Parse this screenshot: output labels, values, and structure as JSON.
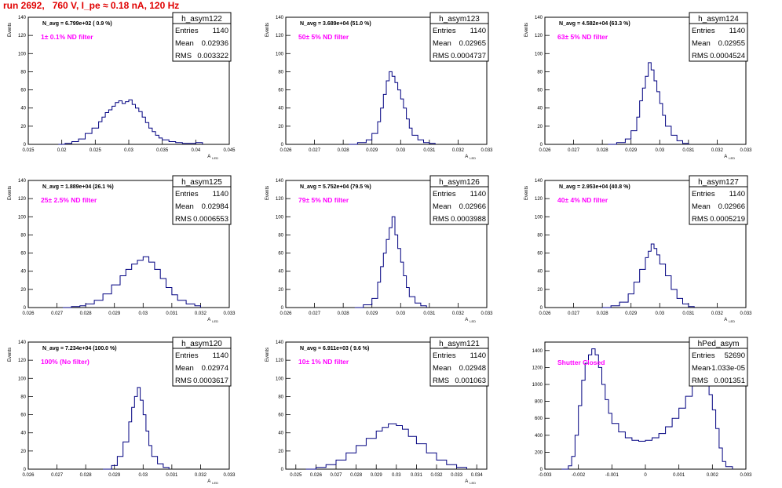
{
  "page_title": "run 2692,   760 V, I_pe ≈ 0.18 nA, 120 Hz",
  "colors": {
    "title": "#e00000",
    "annotation": "#ff00ff",
    "histogram": "#000080",
    "frame": "#000000"
  },
  "stats_labels": {
    "entries": "Entries",
    "mean": "Mean",
    "rms": "RMS"
  },
  "chart_data": [
    {
      "type": "histogram",
      "name": "h_asym122",
      "ylabel": "Events",
      "xlabel": "A_LED",
      "navg": "N_avg = 6.799e+02 ( 0.9 %)",
      "annotation": "1± 0.1% ND filter",
      "stats": {
        "entries": "1140",
        "mean": "0.02936",
        "rms": "0.003322"
      },
      "xlim": [
        0.015,
        0.045
      ],
      "ylim": [
        0,
        140
      ],
      "xticks": [
        0.015,
        0.02,
        0.025,
        0.03,
        0.035,
        0.04,
        0.045
      ],
      "xticklabels": [
        "0.015",
        "0.02",
        "0.025",
        "0.03",
        "0.035",
        "0.04",
        "0.045"
      ],
      "yticks": [
        0,
        20,
        40,
        60,
        80,
        100,
        120,
        140
      ],
      "shape": [
        [
          0.0195,
          0
        ],
        [
          0.0205,
          1
        ],
        [
          0.0215,
          3
        ],
        [
          0.0225,
          6
        ],
        [
          0.0235,
          12
        ],
        [
          0.0245,
          18
        ],
        [
          0.0255,
          25
        ],
        [
          0.026,
          30
        ],
        [
          0.0265,
          35
        ],
        [
          0.027,
          38
        ],
        [
          0.0275,
          42
        ],
        [
          0.028,
          46
        ],
        [
          0.0285,
          48
        ],
        [
          0.029,
          45
        ],
        [
          0.0295,
          47
        ],
        [
          0.03,
          49
        ],
        [
          0.0305,
          44
        ],
        [
          0.031,
          40
        ],
        [
          0.0315,
          36
        ],
        [
          0.032,
          30
        ],
        [
          0.0325,
          24
        ],
        [
          0.033,
          18
        ],
        [
          0.0335,
          14
        ],
        [
          0.034,
          10
        ],
        [
          0.0345,
          7
        ],
        [
          0.035,
          5
        ],
        [
          0.036,
          3
        ],
        [
          0.037,
          2
        ],
        [
          0.038,
          1
        ],
        [
          0.039,
          1
        ],
        [
          0.04,
          2
        ],
        [
          0.041,
          0
        ]
      ]
    },
    {
      "type": "histogram",
      "name": "h_asym123",
      "ylabel": "Events",
      "xlabel": "A_LED",
      "navg": "N_avg = 3.689e+04 (51.0 %)",
      "annotation": "50± 5% ND filter",
      "stats": {
        "entries": "1140",
        "mean": "0.02965",
        "rms": "0.0004737"
      },
      "xlim": [
        0.026,
        0.033
      ],
      "ylim": [
        0,
        140
      ],
      "xticks": [
        0.026,
        0.027,
        0.028,
        0.029,
        0.03,
        0.031,
        0.032,
        0.033
      ],
      "xticklabels": [
        "0.026",
        "0.027",
        "0.028",
        "0.029",
        "0.03",
        "0.031",
        "0.032",
        "0.033"
      ],
      "yticks": [
        0,
        20,
        40,
        60,
        80,
        100,
        120,
        140
      ],
      "shape": [
        [
          0.0282,
          0
        ],
        [
          0.0285,
          2
        ],
        [
          0.0288,
          5
        ],
        [
          0.029,
          12
        ],
        [
          0.0292,
          25
        ],
        [
          0.0293,
          40
        ],
        [
          0.0294,
          55
        ],
        [
          0.0295,
          70
        ],
        [
          0.0296,
          80
        ],
        [
          0.0297,
          75
        ],
        [
          0.0298,
          68
        ],
        [
          0.0299,
          60
        ],
        [
          0.03,
          50
        ],
        [
          0.0301,
          40
        ],
        [
          0.0302,
          28
        ],
        [
          0.0303,
          18
        ],
        [
          0.0304,
          10
        ],
        [
          0.0306,
          5
        ],
        [
          0.0308,
          2
        ],
        [
          0.031,
          1
        ],
        [
          0.0312,
          0
        ]
      ]
    },
    {
      "type": "histogram",
      "name": "h_asym124",
      "ylabel": "Events",
      "xlabel": "A_LED",
      "navg": "N_avg = 4.582e+04 (63.3 %)",
      "annotation": "63± 5% ND filter",
      "stats": {
        "entries": "1140",
        "mean": "0.02955",
        "rms": "0.0004524"
      },
      "xlim": [
        0.026,
        0.033
      ],
      "ylim": [
        0,
        140
      ],
      "xticks": [
        0.026,
        0.027,
        0.028,
        0.029,
        0.03,
        0.031,
        0.032,
        0.033
      ],
      "xticklabels": [
        "0.026",
        "0.027",
        "0.028",
        "0.029",
        "0.03",
        "0.031",
        "0.032",
        "0.033"
      ],
      "yticks": [
        0,
        20,
        40,
        60,
        80,
        100,
        120,
        140
      ],
      "shape": [
        [
          0.0282,
          0
        ],
        [
          0.0285,
          2
        ],
        [
          0.0288,
          6
        ],
        [
          0.029,
          15
        ],
        [
          0.0292,
          30
        ],
        [
          0.0293,
          48
        ],
        [
          0.0294,
          62
        ],
        [
          0.0295,
          75
        ],
        [
          0.0296,
          90
        ],
        [
          0.0297,
          82
        ],
        [
          0.0298,
          70
        ],
        [
          0.0299,
          58
        ],
        [
          0.03,
          45
        ],
        [
          0.0301,
          32
        ],
        [
          0.0302,
          20
        ],
        [
          0.0304,
          10
        ],
        [
          0.0306,
          4
        ],
        [
          0.0308,
          1
        ],
        [
          0.031,
          0
        ]
      ]
    },
    {
      "type": "histogram",
      "name": "h_asym125",
      "ylabel": "Events",
      "xlabel": "A_LED",
      "navg": "N_avg = 1.889e+04 (26.1 %)",
      "annotation": "25± 2.5% ND filter",
      "stats": {
        "entries": "1140",
        "mean": "0.02984",
        "rms": "0.0006553"
      },
      "xlim": [
        0.026,
        0.033
      ],
      "ylim": [
        0,
        140
      ],
      "xticks": [
        0.026,
        0.027,
        0.028,
        0.029,
        0.03,
        0.031,
        0.032,
        0.033
      ],
      "xticklabels": [
        "0.026",
        "0.027",
        "0.028",
        "0.029",
        "0.03",
        "0.031",
        "0.032",
        "0.033"
      ],
      "yticks": [
        0,
        20,
        40,
        60,
        80,
        100,
        120,
        140
      ],
      "shape": [
        [
          0.0272,
          0
        ],
        [
          0.0275,
          1
        ],
        [
          0.0278,
          2
        ],
        [
          0.028,
          4
        ],
        [
          0.0283,
          8
        ],
        [
          0.0286,
          15
        ],
        [
          0.0289,
          25
        ],
        [
          0.0292,
          35
        ],
        [
          0.0294,
          42
        ],
        [
          0.0296,
          48
        ],
        [
          0.0298,
          52
        ],
        [
          0.03,
          56
        ],
        [
          0.0302,
          50
        ],
        [
          0.0304,
          42
        ],
        [
          0.0306,
          32
        ],
        [
          0.0308,
          22
        ],
        [
          0.031,
          14
        ],
        [
          0.0312,
          8
        ],
        [
          0.0315,
          4
        ],
        [
          0.0318,
          2
        ],
        [
          0.032,
          0
        ]
      ]
    },
    {
      "type": "histogram",
      "name": "h_asym126",
      "ylabel": "Events",
      "xlabel": "A_LED",
      "navg": "N_avg = 5.752e+04 (79.5 %)",
      "annotation": "79± 5% ND filter",
      "stats": {
        "entries": "1140",
        "mean": "0.02966",
        "rms": "0.0003988"
      },
      "xlim": [
        0.026,
        0.033
      ],
      "ylim": [
        0,
        140
      ],
      "xticks": [
        0.026,
        0.027,
        0.028,
        0.029,
        0.03,
        0.031,
        0.032,
        0.033
      ],
      "xticklabels": [
        "0.026",
        "0.027",
        "0.028",
        "0.029",
        "0.03",
        "0.031",
        "0.032",
        "0.033"
      ],
      "yticks": [
        0,
        20,
        40,
        60,
        80,
        100,
        120,
        140
      ],
      "shape": [
        [
          0.0284,
          0
        ],
        [
          0.0287,
          3
        ],
        [
          0.029,
          10
        ],
        [
          0.0292,
          28
        ],
        [
          0.0293,
          45
        ],
        [
          0.0294,
          60
        ],
        [
          0.0295,
          75
        ],
        [
          0.0296,
          88
        ],
        [
          0.0297,
          100
        ],
        [
          0.0298,
          80
        ],
        [
          0.0299,
          65
        ],
        [
          0.03,
          50
        ],
        [
          0.0301,
          35
        ],
        [
          0.0302,
          22
        ],
        [
          0.0303,
          12
        ],
        [
          0.0305,
          5
        ],
        [
          0.0307,
          2
        ],
        [
          0.0309,
          0
        ]
      ]
    },
    {
      "type": "histogram",
      "name": "h_asym127",
      "ylabel": "Events",
      "xlabel": "A_LED",
      "navg": "N_avg = 2.953e+04 (40.8 %)",
      "annotation": "40± 4% ND filter",
      "stats": {
        "entries": "1140",
        "mean": "0.02966",
        "rms": "0.0005219"
      },
      "xlim": [
        0.026,
        0.033
      ],
      "ylim": [
        0,
        140
      ],
      "xticks": [
        0.026,
        0.027,
        0.028,
        0.029,
        0.03,
        0.031,
        0.032,
        0.033
      ],
      "xticklabels": [
        "0.026",
        "0.027",
        "0.028",
        "0.029",
        "0.03",
        "0.031",
        "0.032",
        "0.033"
      ],
      "yticks": [
        0,
        20,
        40,
        60,
        80,
        100,
        120,
        140
      ],
      "shape": [
        [
          0.028,
          0
        ],
        [
          0.0283,
          2
        ],
        [
          0.0286,
          6
        ],
        [
          0.0289,
          15
        ],
        [
          0.0291,
          28
        ],
        [
          0.0293,
          42
        ],
        [
          0.0295,
          55
        ],
        [
          0.0296,
          62
        ],
        [
          0.0297,
          70
        ],
        [
          0.0298,
          65
        ],
        [
          0.0299,
          58
        ],
        [
          0.03,
          48
        ],
        [
          0.0302,
          35
        ],
        [
          0.0304,
          20
        ],
        [
          0.0306,
          10
        ],
        [
          0.0308,
          4
        ],
        [
          0.031,
          1
        ],
        [
          0.0312,
          0
        ]
      ]
    },
    {
      "type": "histogram",
      "name": "h_asym120",
      "ylabel": "Events",
      "xlabel": "A_LED",
      "navg": "N_avg = 7.234e+04 (100.0 %)",
      "annotation": "100% (No filter)",
      "stats": {
        "entries": "1140",
        "mean": "0.02974",
        "rms": "0.0003617"
      },
      "xlim": [
        0.026,
        0.033
      ],
      "ylim": [
        0,
        140
      ],
      "xticks": [
        0.026,
        0.027,
        0.028,
        0.029,
        0.03,
        0.031,
        0.032,
        0.033
      ],
      "xticklabels": [
        "0.026",
        "0.027",
        "0.028",
        "0.029",
        "0.03",
        "0.031",
        "0.032",
        "0.033"
      ],
      "yticks": [
        0,
        20,
        40,
        60,
        80,
        100,
        120,
        140
      ],
      "shape": [
        [
          0.0286,
          0
        ],
        [
          0.0289,
          4
        ],
        [
          0.0291,
          14
        ],
        [
          0.0293,
          30
        ],
        [
          0.0295,
          52
        ],
        [
          0.0296,
          68
        ],
        [
          0.0297,
          80
        ],
        [
          0.0298,
          90
        ],
        [
          0.0299,
          76
        ],
        [
          0.03,
          60
        ],
        [
          0.0301,
          42
        ],
        [
          0.0302,
          26
        ],
        [
          0.0303,
          14
        ],
        [
          0.0305,
          6
        ],
        [
          0.0307,
          2
        ],
        [
          0.0309,
          0
        ]
      ]
    },
    {
      "type": "histogram",
      "name": "h_asym121",
      "ylabel": "Events",
      "xlabel": "A_LED",
      "navg": "N_avg = 6.911e+03 ( 9.6 %)",
      "annotation": "10± 1% ND filter",
      "stats": {
        "entries": "1140",
        "mean": "0.02948",
        "rms": "0.001063"
      },
      "xlim": [
        0.0245,
        0.0345
      ],
      "ylim": [
        0,
        140
      ],
      "xticks": [
        0.025,
        0.026,
        0.027,
        0.028,
        0.029,
        0.03,
        0.031,
        0.032,
        0.033,
        0.034
      ],
      "xticklabels": [
        "0.025",
        "0.026",
        "0.027",
        "0.028",
        "0.029",
        "0.03",
        "0.031",
        "0.032",
        "0.033",
        "0.034"
      ],
      "yticks": [
        0,
        20,
        40,
        60,
        80,
        100,
        120,
        140
      ],
      "shape": [
        [
          0.0255,
          0
        ],
        [
          0.026,
          2
        ],
        [
          0.0265,
          5
        ],
        [
          0.027,
          10
        ],
        [
          0.0275,
          18
        ],
        [
          0.028,
          26
        ],
        [
          0.0285,
          34
        ],
        [
          0.029,
          42
        ],
        [
          0.0293,
          46
        ],
        [
          0.0296,
          50
        ],
        [
          0.03,
          48
        ],
        [
          0.0303,
          44
        ],
        [
          0.0306,
          36
        ],
        [
          0.031,
          28
        ],
        [
          0.0315,
          18
        ],
        [
          0.032,
          10
        ],
        [
          0.0325,
          5
        ],
        [
          0.033,
          2
        ],
        [
          0.0335,
          0
        ]
      ]
    },
    {
      "type": "histogram",
      "name": "hPed_asym",
      "ylabel": "",
      "xlabel": "",
      "navg": "",
      "annotation": "Shutter Closed",
      "stats": {
        "entries": "52690",
        "mean": "-1.033e-05",
        "rms": "0.001351"
      },
      "xlim": [
        -0.003,
        0.003
      ],
      "ylim": [
        0,
        1500
      ],
      "xticks": [
        -0.003,
        -0.002,
        -0.001,
        0,
        0.001,
        0.002,
        0.003
      ],
      "xticklabels": [
        "-0.003",
        "-0.002",
        "-0.001",
        "0",
        "0.001",
        "0.002",
        "0.003"
      ],
      "yticks": [
        0,
        200,
        400,
        600,
        800,
        1000,
        1200,
        1400
      ],
      "shape": [
        [
          -0.0025,
          0
        ],
        [
          -0.0023,
          40
        ],
        [
          -0.0022,
          150
        ],
        [
          -0.0021,
          400
        ],
        [
          -0.002,
          750
        ],
        [
          -0.0019,
          1050
        ],
        [
          -0.0018,
          1250
        ],
        [
          -0.0017,
          1350
        ],
        [
          -0.0016,
          1420
        ],
        [
          -0.0015,
          1350
        ],
        [
          -0.0014,
          1200
        ],
        [
          -0.0013,
          1000
        ],
        [
          -0.0012,
          820
        ],
        [
          -0.0011,
          660
        ],
        [
          -0.001,
          540
        ],
        [
          -0.0008,
          440
        ],
        [
          -0.0006,
          370
        ],
        [
          -0.0004,
          340
        ],
        [
          -0.0002,
          330
        ],
        [
          0,
          340
        ],
        [
          0.0002,
          370
        ],
        [
          0.0004,
          420
        ],
        [
          0.0006,
          500
        ],
        [
          0.0008,
          600
        ],
        [
          0.001,
          720
        ],
        [
          0.0012,
          860
        ],
        [
          0.0014,
          1000
        ],
        [
          0.0015,
          1080
        ],
        [
          0.0016,
          1120
        ],
        [
          0.0017,
          1100
        ],
        [
          0.0018,
          1020
        ],
        [
          0.0019,
          880
        ],
        [
          0.002,
          700
        ],
        [
          0.0021,
          480
        ],
        [
          0.0022,
          250
        ],
        [
          0.0023,
          90
        ],
        [
          0.0024,
          30
        ],
        [
          0.0026,
          0
        ]
      ]
    }
  ]
}
